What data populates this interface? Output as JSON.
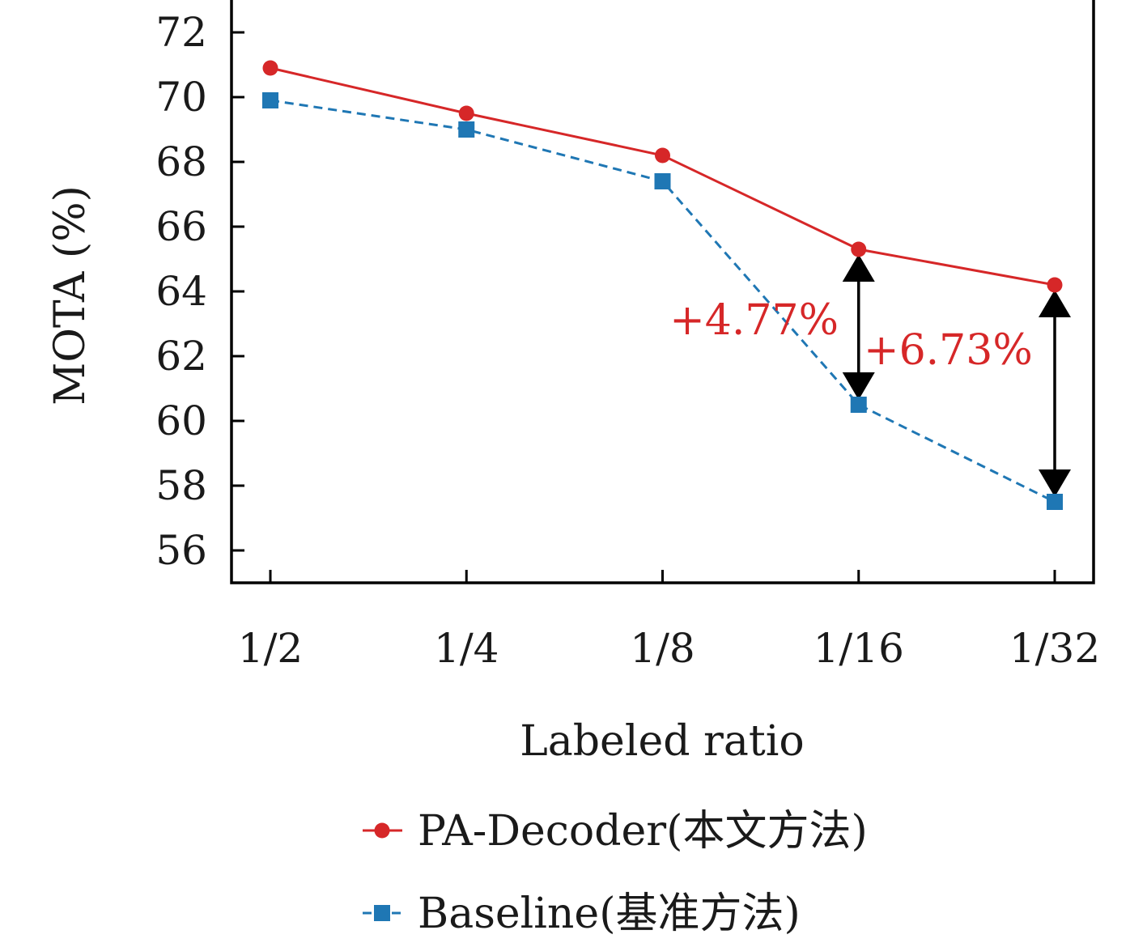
{
  "chart_data": {
    "type": "line",
    "categories": [
      "1/2",
      "1/4",
      "1/8",
      "1/16",
      "1/32"
    ],
    "xlabel": "Labeled ratio",
    "ylabel": "MOTA (%)",
    "ylim": [
      55,
      73
    ],
    "yticks": [
      56,
      58,
      60,
      62,
      64,
      66,
      68,
      70,
      72
    ],
    "grid": false,
    "legend_position": "bottom",
    "series": [
      {
        "name": "PA-Decoder(本文方法)",
        "color": "#d62728",
        "marker": "circle",
        "linestyle": "solid",
        "values": [
          70.9,
          69.5,
          68.2,
          65.3,
          64.2
        ]
      },
      {
        "name": "Baseline(基准方法)",
        "color": "#1f77b4",
        "marker": "square",
        "linestyle": "dashed",
        "values": [
          69.9,
          69.0,
          67.4,
          60.5,
          57.5
        ]
      }
    ],
    "annotations": [
      {
        "text": "+4.77%",
        "category": "1/16",
        "from": 60.5,
        "to": 65.3,
        "color": "#d62728"
      },
      {
        "text": "+6.73%",
        "category": "1/32",
        "from": 57.5,
        "to": 64.2,
        "color": "#d62728"
      }
    ]
  }
}
